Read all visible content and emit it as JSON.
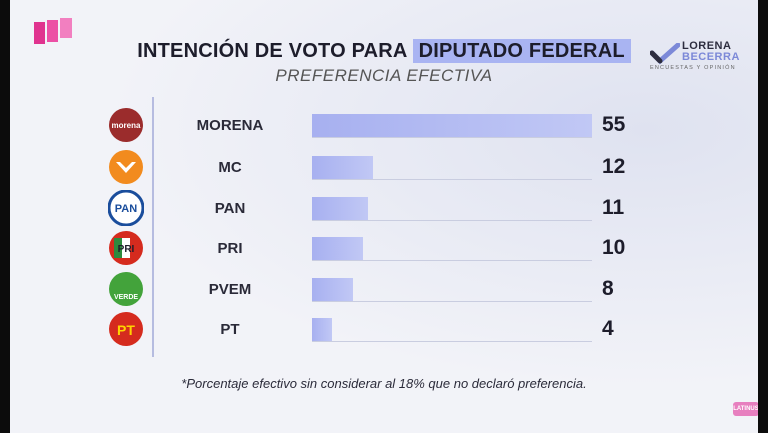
{
  "chart_data": {
    "type": "bar",
    "title_part1": "INTENCIÓN DE VOTO PARA ",
    "title_part2": "DIPUTADO FEDERAL",
    "subtitle": "PREFERENCIA EFECTIVA",
    "categories": [
      "MORENA",
      "MC",
      "PAN",
      "PRI",
      "PVEM",
      "PT"
    ],
    "values": [
      55,
      12,
      11,
      10,
      8,
      4
    ],
    "xlim": [
      0,
      55
    ],
    "orientation": "horizontal",
    "bar_color": "#a9b4f2",
    "footnote": "*Porcentaje efectivo sin considerar al 18% que no declaró preferencia."
  },
  "party_logos": [
    {
      "icon": "morena-logo-icon",
      "text": "morena",
      "color": "#9b2c2c"
    },
    {
      "icon": "mc-logo-icon",
      "text": "",
      "color": "#f28b1e"
    },
    {
      "icon": "pan-logo-icon",
      "text": "PAN",
      "color": "#1a4d9c"
    },
    {
      "icon": "pri-logo-icon",
      "text": "PRI",
      "color": "#d52b1e"
    },
    {
      "icon": "pvem-logo-icon",
      "text": "VERDE",
      "color": "#43a33b"
    },
    {
      "icon": "pt-logo-icon",
      "text": "PT",
      "color": "#d52b1e"
    }
  ],
  "brand": {
    "name_line1": "LORENA",
    "name_line2": "BECERRA",
    "tagline": "ENCUESTAS Y OPINIÓN"
  },
  "corner_badge": "LATINUS"
}
